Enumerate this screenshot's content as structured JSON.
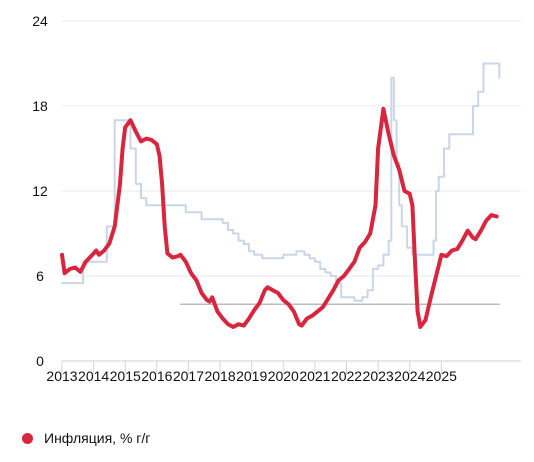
{
  "chart_data": {
    "type": "line",
    "title": "",
    "xlabel": "",
    "ylabel": "",
    "ylim": [
      0,
      24
    ],
    "yticks": [
      0,
      6,
      12,
      18,
      24
    ],
    "xticks": [
      "2013",
      "2014",
      "2015",
      "2016",
      "2017",
      "2018",
      "2019",
      "2020",
      "2021",
      "2022",
      "2023",
      "2024",
      "2025"
    ],
    "grid": true,
    "legend_position": "bottom-left",
    "series": [
      {
        "name": "Инфляция, % г/г",
        "color": "#d7263d",
        "step": false,
        "in_legend": true,
        "points": [
          [
            "2013-01",
            7.5
          ],
          [
            "2013-02",
            6.2
          ],
          [
            "2013-04",
            6.5
          ],
          [
            "2013-06",
            6.6
          ],
          [
            "2013-08",
            6.3
          ],
          [
            "2013-10",
            7.0
          ],
          [
            "2013-12",
            7.4
          ],
          [
            "2014-02",
            7.8
          ],
          [
            "2014-03",
            7.5
          ],
          [
            "2014-05",
            7.8
          ],
          [
            "2014-07",
            8.3
          ],
          [
            "2014-09",
            9.5
          ],
          [
            "2014-11",
            12.5
          ],
          [
            "2014-12",
            15.0
          ],
          [
            "2015-01",
            16.5
          ],
          [
            "2015-03",
            17.0
          ],
          [
            "2015-05",
            16.2
          ],
          [
            "2015-07",
            15.5
          ],
          [
            "2015-09",
            15.7
          ],
          [
            "2015-11",
            15.6
          ],
          [
            "2016-01",
            15.3
          ],
          [
            "2016-02",
            14.5
          ],
          [
            "2016-03",
            12.5
          ],
          [
            "2016-04",
            9.5
          ],
          [
            "2016-05",
            7.6
          ],
          [
            "2016-07",
            7.3
          ],
          [
            "2016-09",
            7.4
          ],
          [
            "2016-10",
            7.5
          ],
          [
            "2016-12",
            7.0
          ],
          [
            "2017-02",
            6.2
          ],
          [
            "2017-04",
            5.7
          ],
          [
            "2017-06",
            4.8
          ],
          [
            "2017-08",
            4.3
          ],
          [
            "2017-09",
            4.2
          ],
          [
            "2017-10",
            4.5
          ],
          [
            "2017-12",
            3.5
          ],
          [
            "2018-02",
            3.0
          ],
          [
            "2018-04",
            2.6
          ],
          [
            "2018-06",
            2.4
          ],
          [
            "2018-08",
            2.6
          ],
          [
            "2018-10",
            2.5
          ],
          [
            "2018-12",
            3.0
          ],
          [
            "2019-02",
            3.6
          ],
          [
            "2019-04",
            4.1
          ],
          [
            "2019-06",
            5.0
          ],
          [
            "2019-07",
            5.2
          ],
          [
            "2019-09",
            5.0
          ],
          [
            "2019-11",
            4.8
          ],
          [
            "2020-01",
            4.3
          ],
          [
            "2020-03",
            4.0
          ],
          [
            "2020-05",
            3.5
          ],
          [
            "2020-07",
            2.6
          ],
          [
            "2020-08",
            2.5
          ],
          [
            "2020-10",
            3.0
          ],
          [
            "2020-12",
            3.2
          ],
          [
            "2021-02",
            3.5
          ],
          [
            "2021-04",
            3.8
          ],
          [
            "2021-06",
            4.4
          ],
          [
            "2021-08",
            5.0
          ],
          [
            "2021-10",
            5.7
          ],
          [
            "2021-12",
            6.0
          ],
          [
            "2022-02",
            6.5
          ],
          [
            "2022-04",
            7.0
          ],
          [
            "2022-06",
            8.0
          ],
          [
            "2022-08",
            8.4
          ],
          [
            "2022-10",
            9.0
          ],
          [
            "2022-12",
            11.0
          ],
          [
            "2023-01",
            15.0
          ],
          [
            "2023-03",
            17.8
          ],
          [
            "2023-05",
            16.0
          ],
          [
            "2023-07",
            14.5
          ],
          [
            "2023-09",
            13.5
          ],
          [
            "2023-11",
            12.0
          ],
          [
            "2024-01",
            11.8
          ],
          [
            "2024-02",
            11.0
          ],
          [
            "2024-03",
            7.0
          ],
          [
            "2024-04",
            3.5
          ],
          [
            "2024-05",
            2.4
          ],
          [
            "2024-07",
            2.9
          ],
          [
            "2024-09",
            4.5
          ],
          [
            "2024-11",
            6.0
          ],
          [
            "2025-01",
            7.5
          ],
          [
            "2025-03",
            7.4
          ],
          [
            "2025-05",
            7.8
          ],
          [
            "2025-07",
            7.9
          ],
          [
            "2025-09",
            8.5
          ],
          [
            "2025-11",
            9.2
          ],
          [
            "2026-01",
            8.7
          ],
          [
            "2026-02",
            8.6
          ],
          [
            "2026-04",
            9.2
          ],
          [
            "2026-06",
            9.9
          ],
          [
            "2026-08",
            10.3
          ],
          [
            "2026-10",
            10.2
          ]
        ]
      },
      {
        "name": "",
        "color": "#c9d6e8",
        "step": true,
        "in_legend": false,
        "points": [
          [
            "2013-01",
            5.5
          ],
          [
            "2013-09",
            7.0
          ],
          [
            "2014-06",
            9.5
          ],
          [
            "2014-09",
            17.0
          ],
          [
            "2015-03",
            15.0
          ],
          [
            "2015-05",
            12.5
          ],
          [
            "2015-07",
            11.5
          ],
          [
            "2015-09",
            11.0
          ],
          [
            "2016-12",
            10.5
          ],
          [
            "2017-06",
            10.0
          ],
          [
            "2018-02",
            9.75
          ],
          [
            "2018-04",
            9.25
          ],
          [
            "2018-06",
            9.0
          ],
          [
            "2018-08",
            8.5
          ],
          [
            "2018-10",
            8.25
          ],
          [
            "2018-12",
            7.75
          ],
          [
            "2019-02",
            7.5
          ],
          [
            "2019-05",
            7.25
          ],
          [
            "2020-01",
            7.5
          ],
          [
            "2020-06",
            7.75
          ],
          [
            "2020-09",
            7.5
          ],
          [
            "2020-11",
            7.25
          ],
          [
            "2021-01",
            7.0
          ],
          [
            "2021-03",
            6.5
          ],
          [
            "2021-05",
            6.25
          ],
          [
            "2021-07",
            6.0
          ],
          [
            "2021-09",
            5.5
          ],
          [
            "2021-11",
            4.5
          ],
          [
            "2022-04",
            4.25
          ],
          [
            "2022-07",
            4.5
          ],
          [
            "2022-09",
            5.0
          ],
          [
            "2022-11",
            6.5
          ],
          [
            "2023-01",
            6.75
          ],
          [
            "2023-03",
            7.5
          ],
          [
            "2023-05",
            8.5
          ],
          [
            "2023-06",
            20.0
          ],
          [
            "2023-07",
            17.0
          ],
          [
            "2023-08",
            14.0
          ],
          [
            "2023-09",
            11.0
          ],
          [
            "2023-10",
            9.5
          ],
          [
            "2023-12",
            8.0
          ],
          [
            "2024-02",
            7.5
          ],
          [
            "2024-06",
            7.5
          ],
          [
            "2024-08",
            7.5
          ],
          [
            "2024-10",
            8.5
          ],
          [
            "2024-11",
            12.0
          ],
          [
            "2024-12",
            13.0
          ],
          [
            "2025-02",
            15.0
          ],
          [
            "2025-04",
            16.0
          ],
          [
            "2026-01",
            18.0
          ],
          [
            "2026-03",
            19.0
          ],
          [
            "2026-05",
            21.0
          ],
          [
            "2026-11",
            20.0
          ]
        ]
      },
      {
        "name": "",
        "color": "#bcbcbc",
        "step": false,
        "in_legend": false,
        "points": [
          [
            "2016-10",
            4.0
          ],
          [
            "2026-11",
            4.0
          ]
        ]
      }
    ]
  },
  "legend": [
    {
      "label": "Инфляция, % г/г",
      "color": "#d7263d"
    }
  ]
}
